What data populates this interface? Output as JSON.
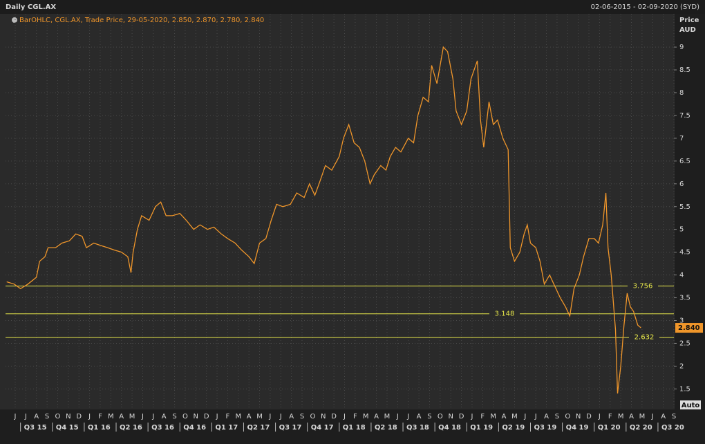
{
  "chart_data": {
    "type": "line",
    "title": "Daily CGL.AX",
    "date_range": "02-06-2015 - 02-09-2020 (SYD)",
    "legend": "BarOHLC, CGL.AX, Trade Price, 29-05-2020, 2.850, 2.870, 2.780, 2.840",
    "y_label": "Price",
    "y_unit": "AUD",
    "scale_mode": "Auto",
    "series": [
      {
        "color": "#f0962a",
        "x": [
          -0.8,
          -0.1,
          0.5,
          1.2,
          2.0,
          2.3,
          2.8,
          3.1,
          3.8,
          4.4,
          5.1,
          5.7,
          6.3,
          6.7,
          7.4,
          8.0,
          8.7,
          9.3,
          10.0,
          10.6,
          10.9,
          11.1,
          11.5,
          11.9,
          12.6,
          13.2,
          13.7,
          14.2,
          14.8,
          15.5,
          16.1,
          16.8,
          17.4,
          18.1,
          18.7,
          19.4,
          20.0,
          20.7,
          21.3,
          22.0,
          22.5,
          23.0,
          23.6,
          24.1,
          24.6,
          25.2,
          25.9,
          26.5,
          27.2,
          27.7,
          28.2,
          28.6,
          29.2,
          29.8,
          30.5,
          30.9,
          31.4,
          31.9,
          32.4,
          32.9,
          33.4,
          33.8,
          34.4,
          34.9,
          35.3,
          35.8,
          36.3,
          37.0,
          37.5,
          37.9,
          38.4,
          38.9,
          39.2,
          39.7,
          40.0,
          40.3,
          40.7,
          41.2,
          41.5,
          42.0,
          42.5,
          42.9,
          43.5,
          43.8,
          44.1,
          44.6,
          45.0,
          45.4,
          45.9,
          46.4,
          46.6,
          47.0,
          47.5,
          47.9,
          48.2,
          48.5,
          49.0,
          49.4,
          49.8,
          50.3,
          50.7,
          51.3,
          51.8,
          52.2,
          52.6,
          53.1,
          53.5,
          54.0,
          54.5,
          54.9,
          55.3,
          55.6,
          55.8,
          56.1,
          56.5,
          56.7,
          57.0,
          57.3,
          57.6,
          57.9,
          58.2,
          58.6,
          58.9
        ],
        "values": [
          3.85,
          3.8,
          3.7,
          3.8,
          3.95,
          4.3,
          4.4,
          4.6,
          4.6,
          4.7,
          4.75,
          4.9,
          4.85,
          4.6,
          4.7,
          4.65,
          4.6,
          4.55,
          4.5,
          4.4,
          4.05,
          4.5,
          5.0,
          5.3,
          5.2,
          5.5,
          5.6,
          5.3,
          5.3,
          5.35,
          5.2,
          5.0,
          5.1,
          5.0,
          5.05,
          4.9,
          4.8,
          4.7,
          4.55,
          4.4,
          4.25,
          4.7,
          4.8,
          5.2,
          5.55,
          5.5,
          5.55,
          5.8,
          5.7,
          6.0,
          5.75,
          6.0,
          6.4,
          6.3,
          6.6,
          7.0,
          7.3,
          6.9,
          6.8,
          6.5,
          6.0,
          6.2,
          6.4,
          6.3,
          6.6,
          6.8,
          6.7,
          7.0,
          6.9,
          7.5,
          7.9,
          7.8,
          8.6,
          8.2,
          8.6,
          9.0,
          8.9,
          8.3,
          7.6,
          7.3,
          7.6,
          8.3,
          8.7,
          7.4,
          6.8,
          7.8,
          7.3,
          7.4,
          7.0,
          6.75,
          4.6,
          4.3,
          4.5,
          4.9,
          5.1,
          4.7,
          4.6,
          4.3,
          3.8,
          4.0,
          3.8,
          3.5,
          3.3,
          3.1,
          3.7,
          4.0,
          4.4,
          4.8,
          4.8,
          4.7,
          5.1,
          5.8,
          4.6,
          4.0,
          2.8,
          1.4,
          2.0,
          2.9,
          3.6,
          3.3,
          3.2,
          2.9,
          2.84
        ]
      }
    ],
    "reference_lines": [
      3.756,
      3.148,
      2.632
    ],
    "last_price": {
      "value": 2.84,
      "label": "2.840"
    },
    "xlim": [
      -0.91,
      62.0
    ],
    "ylim": [
      1.05,
      9.73
    ],
    "yticks": [
      1.5,
      2,
      2.5,
      3,
      3.5,
      4,
      4.5,
      5,
      5.5,
      6,
      6.5,
      7,
      7.5,
      8,
      8.5,
      9
    ],
    "xticks": [
      {
        "value": 0,
        "label": "J"
      },
      {
        "value": 1,
        "label": "J"
      },
      {
        "value": 2,
        "label": "A"
      },
      {
        "value": 3,
        "label": "S"
      },
      {
        "value": 4,
        "label": "O"
      },
      {
        "value": 5,
        "label": "N"
      },
      {
        "value": 6,
        "label": "D"
      },
      {
        "value": 7,
        "label": "J"
      },
      {
        "value": 8,
        "label": "F"
      },
      {
        "value": 9,
        "label": "M"
      },
      {
        "value": 10,
        "label": "A"
      },
      {
        "value": 11,
        "label": "M"
      },
      {
        "value": 12,
        "label": "J"
      },
      {
        "value": 13,
        "label": "J"
      },
      {
        "value": 14,
        "label": "A"
      },
      {
        "value": 15,
        "label": "S"
      },
      {
        "value": 16,
        "label": "O"
      },
      {
        "value": 17,
        "label": "N"
      },
      {
        "value": 18,
        "label": "D"
      },
      {
        "value": 19,
        "label": "J"
      },
      {
        "value": 20,
        "label": "F"
      },
      {
        "value": 21,
        "label": "M"
      },
      {
        "value": 22,
        "label": "A"
      },
      {
        "value": 23,
        "label": "M"
      },
      {
        "value": 24,
        "label": "J"
      },
      {
        "value": 25,
        "label": "J"
      },
      {
        "value": 26,
        "label": "A"
      },
      {
        "value": 27,
        "label": "S"
      },
      {
        "value": 28,
        "label": "O"
      },
      {
        "value": 29,
        "label": "N"
      },
      {
        "value": 30,
        "label": "D"
      },
      {
        "value": 31,
        "label": "J"
      },
      {
        "value": 32,
        "label": "F"
      },
      {
        "value": 33,
        "label": "M"
      },
      {
        "value": 34,
        "label": "A"
      },
      {
        "value": 35,
        "label": "M"
      },
      {
        "value": 36,
        "label": "J"
      },
      {
        "value": 37,
        "label": "J"
      },
      {
        "value": 38,
        "label": "A"
      },
      {
        "value": 39,
        "label": "S"
      },
      {
        "value": 40,
        "label": "O"
      },
      {
        "value": 41,
        "label": "N"
      },
      {
        "value": 42,
        "label": "D"
      },
      {
        "value": 43,
        "label": "J"
      },
      {
        "value": 44,
        "label": "F"
      },
      {
        "value": 45,
        "label": "M"
      },
      {
        "value": 46,
        "label": "A"
      },
      {
        "value": 47,
        "label": "M"
      },
      {
        "value": 48,
        "label": "J"
      },
      {
        "value": 49,
        "label": "J"
      },
      {
        "value": 50,
        "label": "A"
      },
      {
        "value": 51,
        "label": "S"
      },
      {
        "value": 52,
        "label": "O"
      },
      {
        "value": 53,
        "label": "N"
      },
      {
        "value": 54,
        "label": "D"
      },
      {
        "value": 55,
        "label": "J"
      },
      {
        "value": 56,
        "label": "F"
      },
      {
        "value": 57,
        "label": "M"
      },
      {
        "value": 58,
        "label": "A"
      },
      {
        "value": 59,
        "label": "M"
      },
      {
        "value": 60,
        "label": "J"
      },
      {
        "value": 61,
        "label": "A"
      },
      {
        "value": 62,
        "label": "S"
      }
    ],
    "quarters": [
      {
        "value": 0.5,
        "label": "Q3 15"
      },
      {
        "value": 3.5,
        "label": "Q4 15"
      },
      {
        "value": 6.5,
        "label": "Q1 16"
      },
      {
        "value": 9.5,
        "label": "Q2 16"
      },
      {
        "value": 12.5,
        "label": "Q3 16"
      },
      {
        "value": 15.5,
        "label": "Q4 16"
      },
      {
        "value": 18.5,
        "label": "Q1 17"
      },
      {
        "value": 21.5,
        "label": "Q2 17"
      },
      {
        "value": 24.5,
        "label": "Q3 17"
      },
      {
        "value": 27.5,
        "label": "Q4 17"
      },
      {
        "value": 30.5,
        "label": "Q1 18"
      },
      {
        "value": 33.5,
        "label": "Q2 18"
      },
      {
        "value": 36.5,
        "label": "Q3 18"
      },
      {
        "value": 39.5,
        "label": "Q4 18"
      },
      {
        "value": 42.5,
        "label": "Q1 19"
      },
      {
        "value": 45.5,
        "label": "Q2 19"
      },
      {
        "value": 48.5,
        "label": "Q3 19"
      },
      {
        "value": 51.5,
        "label": "Q4 19"
      },
      {
        "value": 54.5,
        "label": "Q1 20"
      },
      {
        "value": 57.5,
        "label": "Q2 20"
      },
      {
        "value": 60.5,
        "label": "Q3 20"
      }
    ],
    "grid": true
  }
}
